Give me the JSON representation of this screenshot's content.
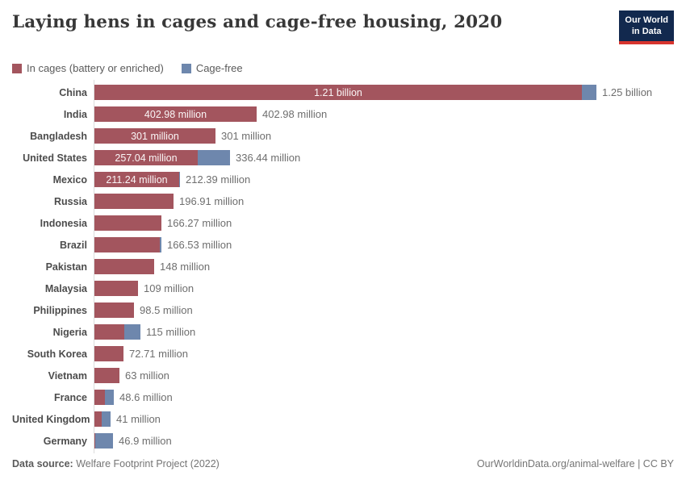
{
  "header": {
    "title": "Laying hens in cages and cage-free housing, 2020",
    "logo_line1": "Our World",
    "logo_line2": "in Data"
  },
  "legend": {
    "items": [
      {
        "label": "In cages (battery or enriched)",
        "color": "#a3555e"
      },
      {
        "label": "Cage-free",
        "color": "#6e87ad"
      }
    ]
  },
  "chart_data": {
    "type": "bar",
    "orientation": "horizontal",
    "stacked": true,
    "title": "Laying hens in cages and cage-free housing, 2020",
    "series_names": [
      "In cages (battery or enriched)",
      "Cage-free"
    ],
    "value_unit": "laying hens",
    "x_range_millions": [
      0,
      1250
    ],
    "rows": [
      {
        "country": "China",
        "cages_millions": 1210,
        "cage_free_millions": 36,
        "bar_label": "1.21 billion",
        "total_label": "1.25 billion"
      },
      {
        "country": "India",
        "cages_millions": 402.98,
        "cage_free_millions": 0,
        "bar_label": "402.98 million",
        "total_label": "402.98 million"
      },
      {
        "country": "Bangladesh",
        "cages_millions": 301,
        "cage_free_millions": 0,
        "bar_label": "301 million",
        "total_label": "301 million"
      },
      {
        "country": "United States",
        "cages_millions": 257.04,
        "cage_free_millions": 79.4,
        "bar_label": "257.04 million",
        "total_label": "336.44 million"
      },
      {
        "country": "Mexico",
        "cages_millions": 211.24,
        "cage_free_millions": 1.15,
        "bar_label": "211.24 million",
        "total_label": "212.39 million"
      },
      {
        "country": "Russia",
        "cages_millions": 196.91,
        "cage_free_millions": 0,
        "bar_label": "",
        "total_label": "196.91 million"
      },
      {
        "country": "Indonesia",
        "cages_millions": 166.27,
        "cage_free_millions": 0,
        "bar_label": "",
        "total_label": "166.27 million"
      },
      {
        "country": "Brazil",
        "cages_millions": 162.36,
        "cage_free_millions": 4.17,
        "bar_label": "",
        "total_label": "166.53 million"
      },
      {
        "country": "Pakistan",
        "cages_millions": 148,
        "cage_free_millions": 0,
        "bar_label": "",
        "total_label": "148 million"
      },
      {
        "country": "Malaysia",
        "cages_millions": 109,
        "cage_free_millions": 0,
        "bar_label": "",
        "total_label": "109 million"
      },
      {
        "country": "Philippines",
        "cages_millions": 98.5,
        "cage_free_millions": 0,
        "bar_label": "",
        "total_label": "98.5 million"
      },
      {
        "country": "Nigeria",
        "cages_millions": 74.75,
        "cage_free_millions": 40.25,
        "bar_label": "",
        "total_label": "115 million"
      },
      {
        "country": "South Korea",
        "cages_millions": 72.71,
        "cage_free_millions": 0,
        "bar_label": "",
        "total_label": "72.71 million"
      },
      {
        "country": "Vietnam",
        "cages_millions": 63,
        "cage_free_millions": 0,
        "bar_label": "",
        "total_label": "63 million"
      },
      {
        "country": "France",
        "cages_millions": 26.6,
        "cage_free_millions": 22,
        "bar_label": "",
        "total_label": "48.6 million"
      },
      {
        "country": "United Kingdom",
        "cages_millions": 18.2,
        "cage_free_millions": 22.8,
        "bar_label": "",
        "total_label": "41 million"
      },
      {
        "country": "Germany",
        "cages_millions": 2,
        "cage_free_millions": 44.9,
        "bar_label": "",
        "total_label": "46.9 million"
      }
    ]
  },
  "footer": {
    "source_prefix": "Data source:",
    "source_text": " Welfare Footprint Project (2022)",
    "credit": "OurWorldinData.org/animal-welfare | CC BY"
  },
  "colors": {
    "cages": "#a3555e",
    "cage_free": "#6e87ad",
    "axis": "#dcdcdc",
    "logo_bg": "#12294e",
    "logo_underline": "#d7352e"
  }
}
